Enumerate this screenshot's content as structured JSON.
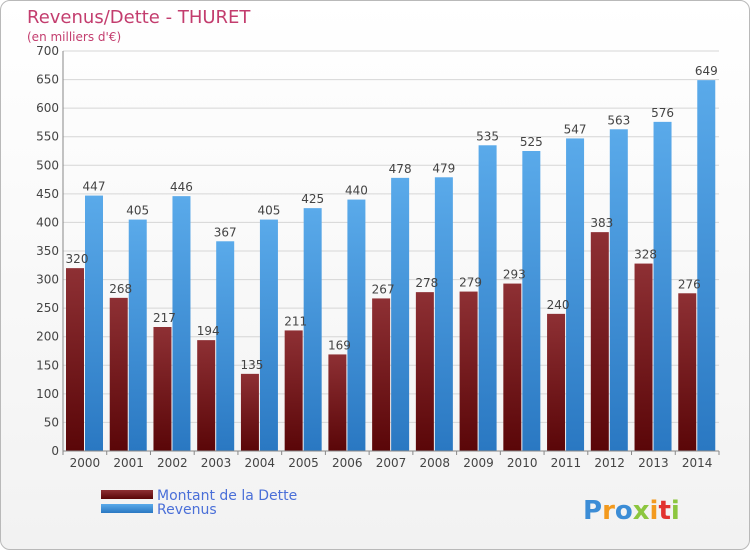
{
  "chart_data": {
    "type": "bar",
    "title": "Revenus/Dette - THURET",
    "subtitle": "(en milliers d'€)",
    "categories": [
      "2000",
      "2001",
      "2002",
      "2003",
      "2004",
      "2005",
      "2006",
      "2007",
      "2008",
      "2009",
      "2010",
      "2011",
      "2012",
      "2013",
      "2014"
    ],
    "series": [
      {
        "name": "Montant de la Dette",
        "color": "#7a1a1d",
        "values": [
          320,
          268,
          217,
          194,
          135,
          211,
          169,
          267,
          278,
          279,
          293,
          240,
          383,
          328,
          276
        ]
      },
      {
        "name": "Revenus",
        "color": "#4a9fe0",
        "values": [
          447,
          405,
          446,
          367,
          405,
          425,
          440,
          478,
          479,
          535,
          525,
          547,
          563,
          576,
          649
        ]
      }
    ],
    "ylim": [
      0,
      700
    ],
    "yticks": [
      0,
      50,
      100,
      150,
      200,
      250,
      300,
      350,
      400,
      450,
      500,
      550,
      600,
      650,
      700
    ],
    "grid": true,
    "legend_position": "bottom-left"
  },
  "brand": {
    "letters": [
      "P",
      "r",
      "o",
      "x",
      "i",
      "t",
      "i"
    ],
    "colors": [
      "#3c8dd6",
      "#f39a1e",
      "#3c8dd6",
      "#8cc63f",
      "#f39a1e",
      "#e2322f",
      "#8cc63f"
    ]
  }
}
